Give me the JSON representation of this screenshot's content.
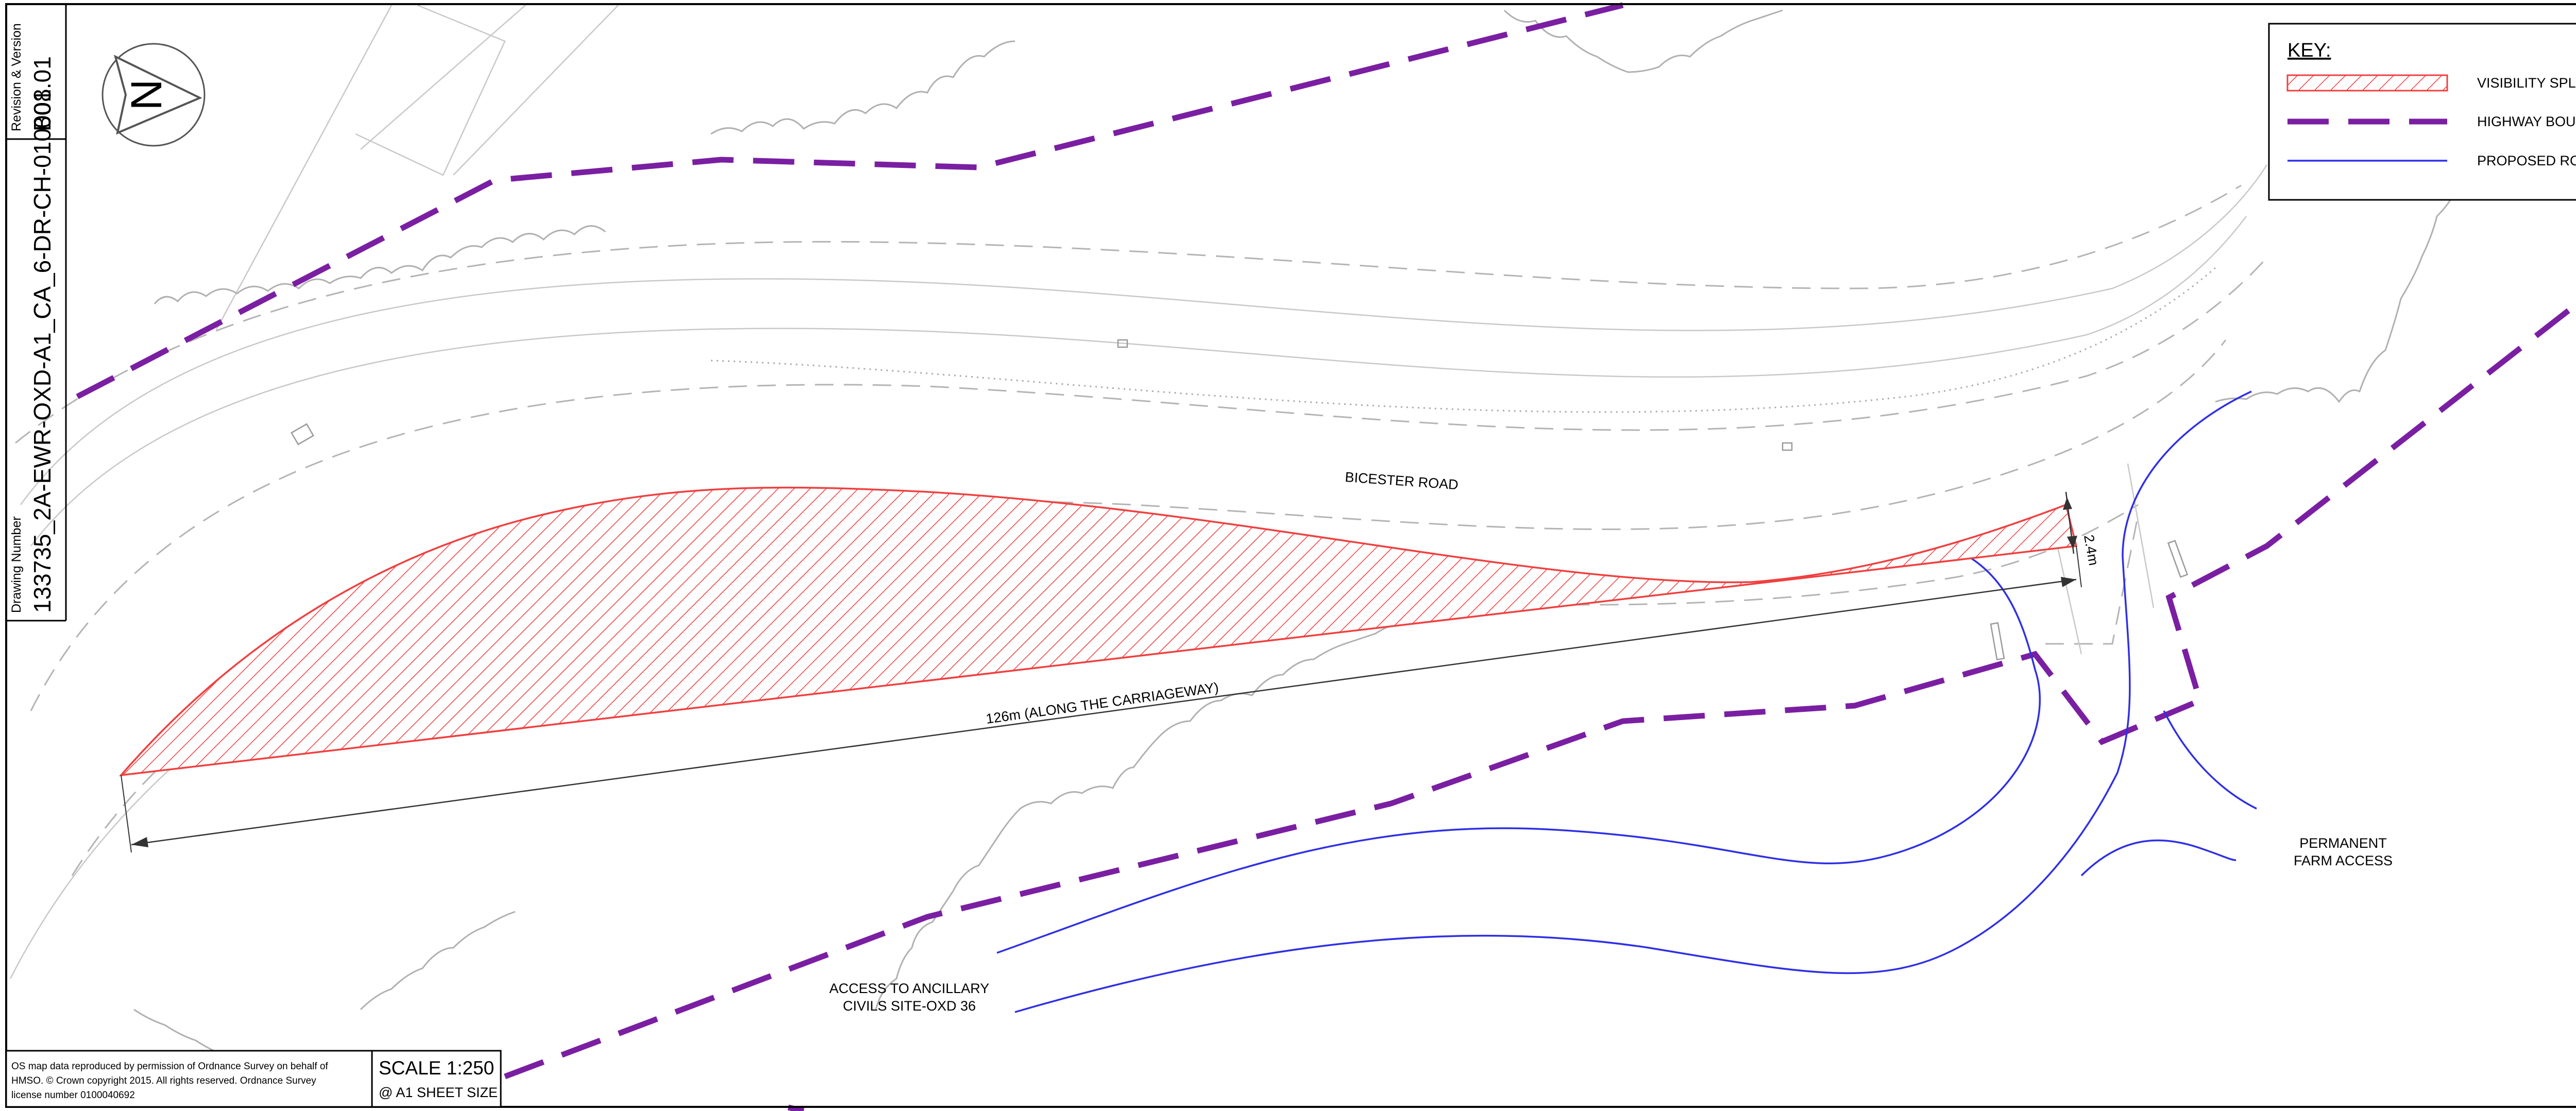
{
  "title_block": {
    "revision_label": "Revision & Version",
    "revision_value": "B01.01",
    "drawing_number_label": "Drawing Number",
    "drawing_number_value": "133735_2A-EWR-OXD-A1_CA_6-DR-CH-010008",
    "north_arrow_letter": "N"
  },
  "key": {
    "title": "KEY:",
    "items": [
      {
        "label": "VISIBILITY SPLAY",
        "symbol": "hatched-red-box"
      },
      {
        "label": "HIGHWAY BOUNDARY",
        "symbol": "purple-dashed-line"
      },
      {
        "label": "PROPOSED ROAD EDGE",
        "symbol": "blue-thin-line"
      }
    ]
  },
  "labels": {
    "road_name": "BICESTER ROAD",
    "splay_length": "126m (ALONG THE CARRIAGEWAY)",
    "setback": "2.4m",
    "farm_access_line1": "PERMANENT",
    "farm_access_line2": "FARM ACCESS",
    "ancillary_line1": "ACCESS TO ANCILLARY",
    "ancillary_line2": "CIVILS SITE-OXD 36"
  },
  "footer": {
    "copyright_line1": "OS map data reproduced by permission of Ordnance Survey on behalf of",
    "copyright_line2": "HMSO. © Crown copyright 2015. All rights reserved. Ordnance Survey",
    "copyright_line3": "license number 0100040692",
    "scale": "SCALE 1:250",
    "sheet_size": "@ A1 SHEET SIZE"
  },
  "colors": {
    "visibility_splay": "#f04040",
    "highway_boundary": "#7a1fa2",
    "proposed_road_edge": "#2f2fe6",
    "os_base_map": "#b4b4b4"
  }
}
